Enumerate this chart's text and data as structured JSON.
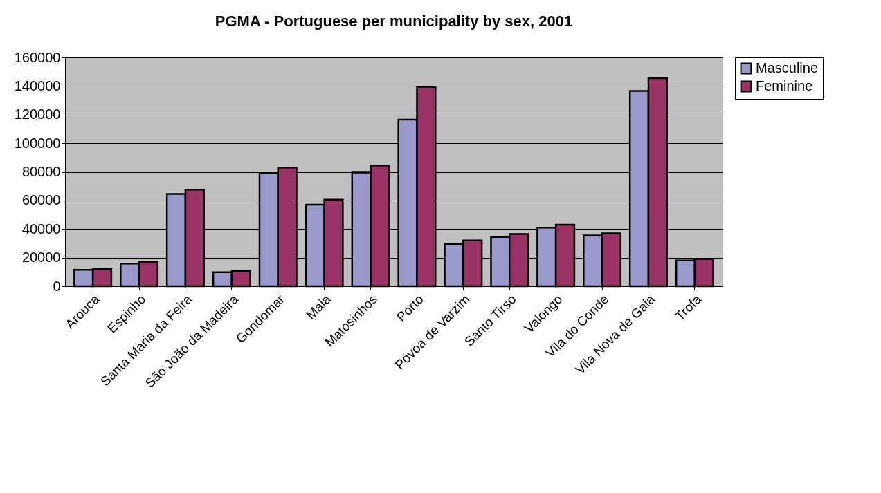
{
  "chart_data": {
    "type": "bar",
    "title": "PGMA - Portuguese per municipality by sex, 2001",
    "categories": [
      "Arouca",
      "Espinho",
      "Santa Maria da Feira",
      "São João da Madeira",
      "Gondomar",
      "Maia",
      "Matosinhos",
      "Porto",
      "Póvoa de Varzim",
      "Santo Tirso",
      "Valongo",
      "Vila do Conde",
      "Vila Nova de Gaia",
      "Trofa"
    ],
    "series": [
      {
        "name": "Masculine",
        "color": "#9999cc",
        "values": [
          11500,
          15800,
          64500,
          9800,
          79000,
          57000,
          79500,
          116500,
          29500,
          34500,
          41000,
          35500,
          136500,
          18000
        ]
      },
      {
        "name": "Feminine",
        "color": "#993366",
        "values": [
          12000,
          17000,
          67500,
          10700,
          83000,
          60500,
          84500,
          139500,
          32000,
          36500,
          43000,
          37000,
          145500,
          19000
        ]
      }
    ],
    "ylim": [
      0,
      160000
    ],
    "yticks": [
      0,
      20000,
      40000,
      60000,
      80000,
      100000,
      120000,
      140000,
      160000
    ],
    "grid": "y",
    "legend": "right"
  }
}
